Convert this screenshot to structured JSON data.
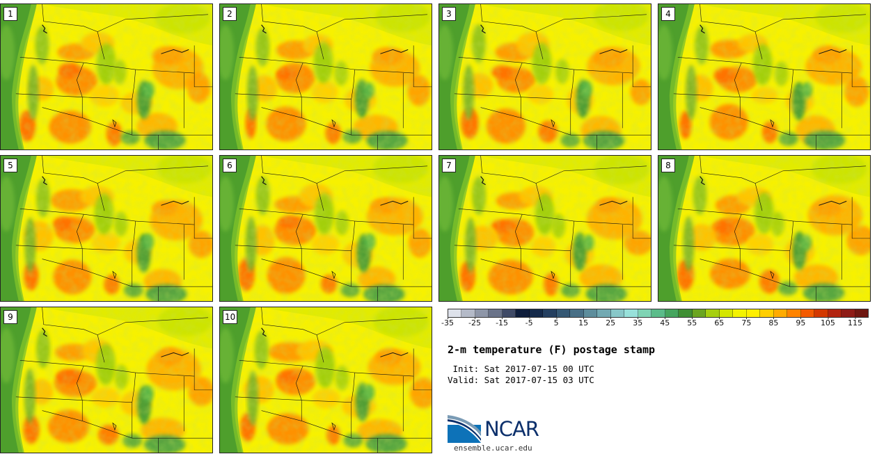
{
  "panels": [
    {
      "label": "1"
    },
    {
      "label": "2"
    },
    {
      "label": "3"
    },
    {
      "label": "4"
    },
    {
      "label": "5"
    },
    {
      "label": "6"
    },
    {
      "label": "7"
    },
    {
      "label": "8"
    },
    {
      "label": "9"
    },
    {
      "label": "10"
    }
  ],
  "colorbar": {
    "colors": [
      "#dde1ea",
      "#b4bac8",
      "#8e96a8",
      "#6a7389",
      "#3f4a66",
      "#0e1d3b",
      "#14294a",
      "#243f60",
      "#355874",
      "#486f86",
      "#5d8d9c",
      "#72a9b2",
      "#88c7c8",
      "#98e1da",
      "#7fd4b4",
      "#5bbc8a",
      "#45a55e",
      "#3f8f34",
      "#6aa520",
      "#a6cf10",
      "#d4e600",
      "#f3f300",
      "#ffef00",
      "#ffce00",
      "#ffab00",
      "#ff8300",
      "#f35a00",
      "#d33800",
      "#b22410",
      "#8e1b16",
      "#6f1711"
    ],
    "tick_values": [
      "-35",
      "-25",
      "-15",
      "-5",
      "5",
      "15",
      "25",
      "35",
      "45",
      "55",
      "65",
      "75",
      "85",
      "95",
      "105",
      "115"
    ],
    "min": -35,
    "max": 120
  },
  "title": "2-m temperature (F) postage stamp",
  "init": " Init: Sat 2017-07-15 00 UTC",
  "valid": "Valid: Sat 2017-07-15 03 UTC",
  "logo": {
    "text": "NCAR",
    "url": "ensemble.ucar.edu"
  }
}
